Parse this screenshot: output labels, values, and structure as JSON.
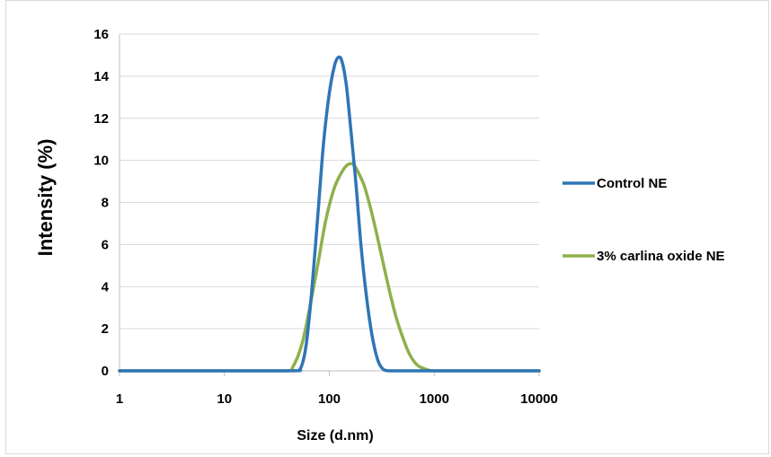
{
  "chart_data": {
    "type": "line",
    "xlabel": "Size (d.nm)",
    "ylabel": "Intensity (%)",
    "x_scale": "log",
    "xlim": [
      1,
      10000
    ],
    "ylim": [
      0,
      16
    ],
    "x_ticks": [
      "1",
      "10",
      "100",
      "1000",
      "10000"
    ],
    "y_ticks": [
      "0",
      "2",
      "4",
      "6",
      "8",
      "10",
      "12",
      "14",
      "16"
    ],
    "grid": "horizontal",
    "legend_position": "right",
    "series": [
      {
        "name": "Control NE",
        "color": "#2e75b6",
        "x": [
          1,
          10,
          45,
          53,
          60,
          68,
          78,
          88,
          100,
          112,
          122,
          132,
          145,
          160,
          180,
          200,
          225,
          255,
          290,
          330,
          370,
          500,
          1000,
          10000
        ],
        "y": [
          0,
          0,
          0,
          0.1,
          1.2,
          3.8,
          7.5,
          10.8,
          13.2,
          14.5,
          14.9,
          14.7,
          13.6,
          11.5,
          8.8,
          6.0,
          3.6,
          1.7,
          0.5,
          0.05,
          0,
          0,
          0,
          0
        ]
      },
      {
        "name": "3% carlina oxide NE",
        "color": "#8fb04d",
        "x": [
          1,
          10,
          38,
          45,
          55,
          65,
          78,
          92,
          110,
          130,
          150,
          170,
          190,
          215,
          245,
          280,
          320,
          370,
          430,
          500,
          580,
          680,
          800,
          950,
          1100,
          10000
        ],
        "y": [
          0,
          0,
          0,
          0.2,
          1.3,
          3.0,
          5.1,
          7.1,
          8.6,
          9.4,
          9.8,
          9.8,
          9.4,
          8.8,
          7.8,
          6.6,
          5.3,
          3.9,
          2.6,
          1.6,
          0.8,
          0.3,
          0.1,
          0,
          0,
          0
        ]
      }
    ]
  }
}
